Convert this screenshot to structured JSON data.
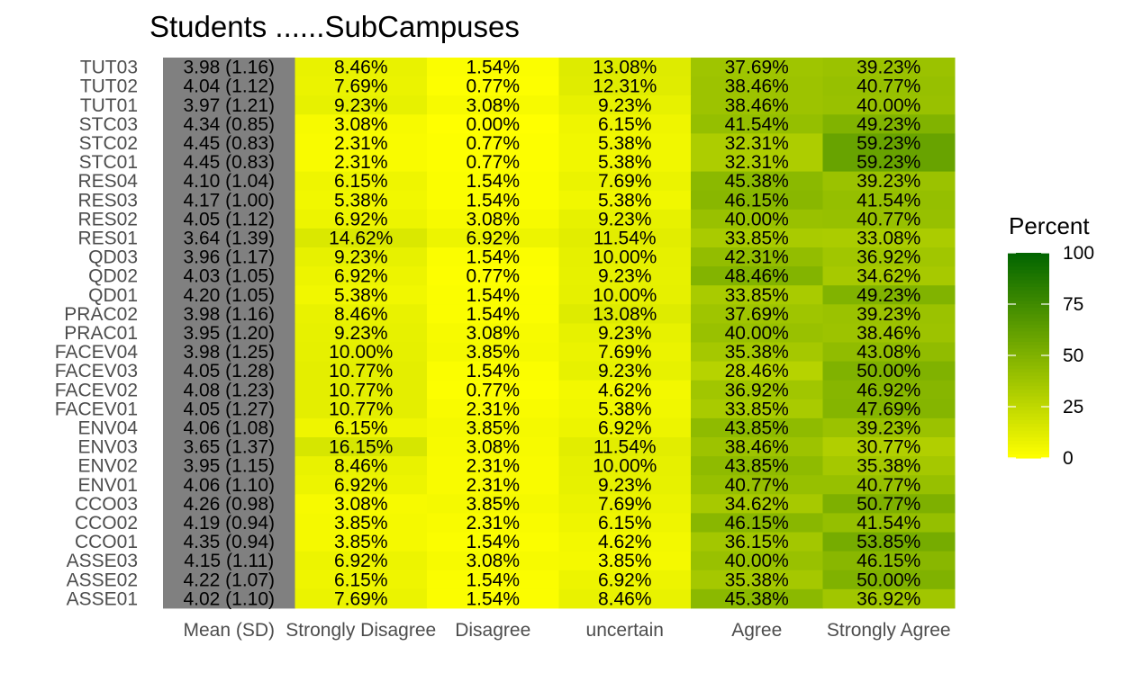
{
  "chart_data": {
    "type": "heatmap",
    "title": "Students ......SubCampuses",
    "columns": [
      "Mean (SD)",
      "Strongly Disagree",
      "Disagree",
      "uncertain",
      "Agree",
      "Strongly Agree"
    ],
    "rows": [
      "TUT03",
      "TUT02",
      "TUT01",
      "STC03",
      "STC02",
      "STC01",
      "RES04",
      "RES03",
      "RES02",
      "RES01",
      "QD03",
      "QD02",
      "QD01",
      "PRAC02",
      "PRAC01",
      "FACEV04",
      "FACEV03",
      "FACEV02",
      "FACEV01",
      "ENV04",
      "ENV03",
      "ENV02",
      "ENV01",
      "CCO03",
      "CCO02",
      "CCO01",
      "ASSE03",
      "ASSE02",
      "ASSE01"
    ],
    "mean_sd": [
      "3.98 (1.16)",
      "4.04 (1.12)",
      "3.97 (1.21)",
      "4.34 (0.85)",
      "4.45 (0.83)",
      "4.45 (0.83)",
      "4.10 (1.04)",
      "4.17 (1.00)",
      "4.05 (1.12)",
      "3.64 (1.39)",
      "3.96 (1.17)",
      "4.03 (1.05)",
      "4.20 (1.05)",
      "3.98 (1.16)",
      "3.95 (1.20)",
      "3.98 (1.25)",
      "4.05 (1.28)",
      "4.08 (1.23)",
      "4.05 (1.27)",
      "4.06 (1.08)",
      "3.65 (1.37)",
      "3.95 (1.15)",
      "4.06 (1.10)",
      "4.26 (0.98)",
      "4.19 (0.94)",
      "4.35 (0.94)",
      "4.15 (1.11)",
      "4.22 (1.07)",
      "4.02 (1.10)"
    ],
    "values": [
      [
        8.46,
        1.54,
        13.08,
        37.69,
        39.23
      ],
      [
        7.69,
        0.77,
        12.31,
        38.46,
        40.77
      ],
      [
        9.23,
        3.08,
        9.23,
        38.46,
        40.0
      ],
      [
        3.08,
        0.0,
        6.15,
        41.54,
        49.23
      ],
      [
        2.31,
        0.77,
        5.38,
        32.31,
        59.23
      ],
      [
        2.31,
        0.77,
        5.38,
        32.31,
        59.23
      ],
      [
        6.15,
        1.54,
        7.69,
        45.38,
        39.23
      ],
      [
        5.38,
        1.54,
        5.38,
        46.15,
        41.54
      ],
      [
        6.92,
        3.08,
        9.23,
        40.0,
        40.77
      ],
      [
        14.62,
        6.92,
        11.54,
        33.85,
        33.08
      ],
      [
        9.23,
        1.54,
        10.0,
        42.31,
        36.92
      ],
      [
        6.92,
        0.77,
        9.23,
        48.46,
        34.62
      ],
      [
        5.38,
        1.54,
        10.0,
        33.85,
        49.23
      ],
      [
        8.46,
        1.54,
        13.08,
        37.69,
        39.23
      ],
      [
        9.23,
        3.08,
        9.23,
        40.0,
        38.46
      ],
      [
        10.0,
        3.85,
        7.69,
        35.38,
        43.08
      ],
      [
        10.77,
        1.54,
        9.23,
        28.46,
        50.0
      ],
      [
        10.77,
        0.77,
        4.62,
        36.92,
        46.92
      ],
      [
        10.77,
        2.31,
        5.38,
        33.85,
        47.69
      ],
      [
        6.15,
        3.85,
        6.92,
        43.85,
        39.23
      ],
      [
        16.15,
        3.08,
        11.54,
        38.46,
        30.77
      ],
      [
        8.46,
        2.31,
        10.0,
        43.85,
        35.38
      ],
      [
        6.92,
        2.31,
        9.23,
        40.77,
        40.77
      ],
      [
        3.08,
        3.85,
        7.69,
        34.62,
        50.77
      ],
      [
        3.85,
        2.31,
        6.15,
        46.15,
        41.54
      ],
      [
        3.85,
        1.54,
        4.62,
        36.15,
        53.85
      ],
      [
        6.92,
        3.08,
        3.85,
        40.0,
        46.15
      ],
      [
        6.15,
        1.54,
        6.92,
        35.38,
        50.0
      ],
      [
        7.69,
        1.54,
        8.46,
        45.38,
        36.92
      ]
    ],
    "legend": {
      "title": "Percent",
      "ticks": [
        0,
        25,
        50,
        75,
        100
      ],
      "range": [
        0,
        100
      ],
      "placement": "right",
      "low_color": "#ffff00",
      "high_color": "#006400"
    },
    "mean_column_color": "#808080",
    "grid": false
  }
}
